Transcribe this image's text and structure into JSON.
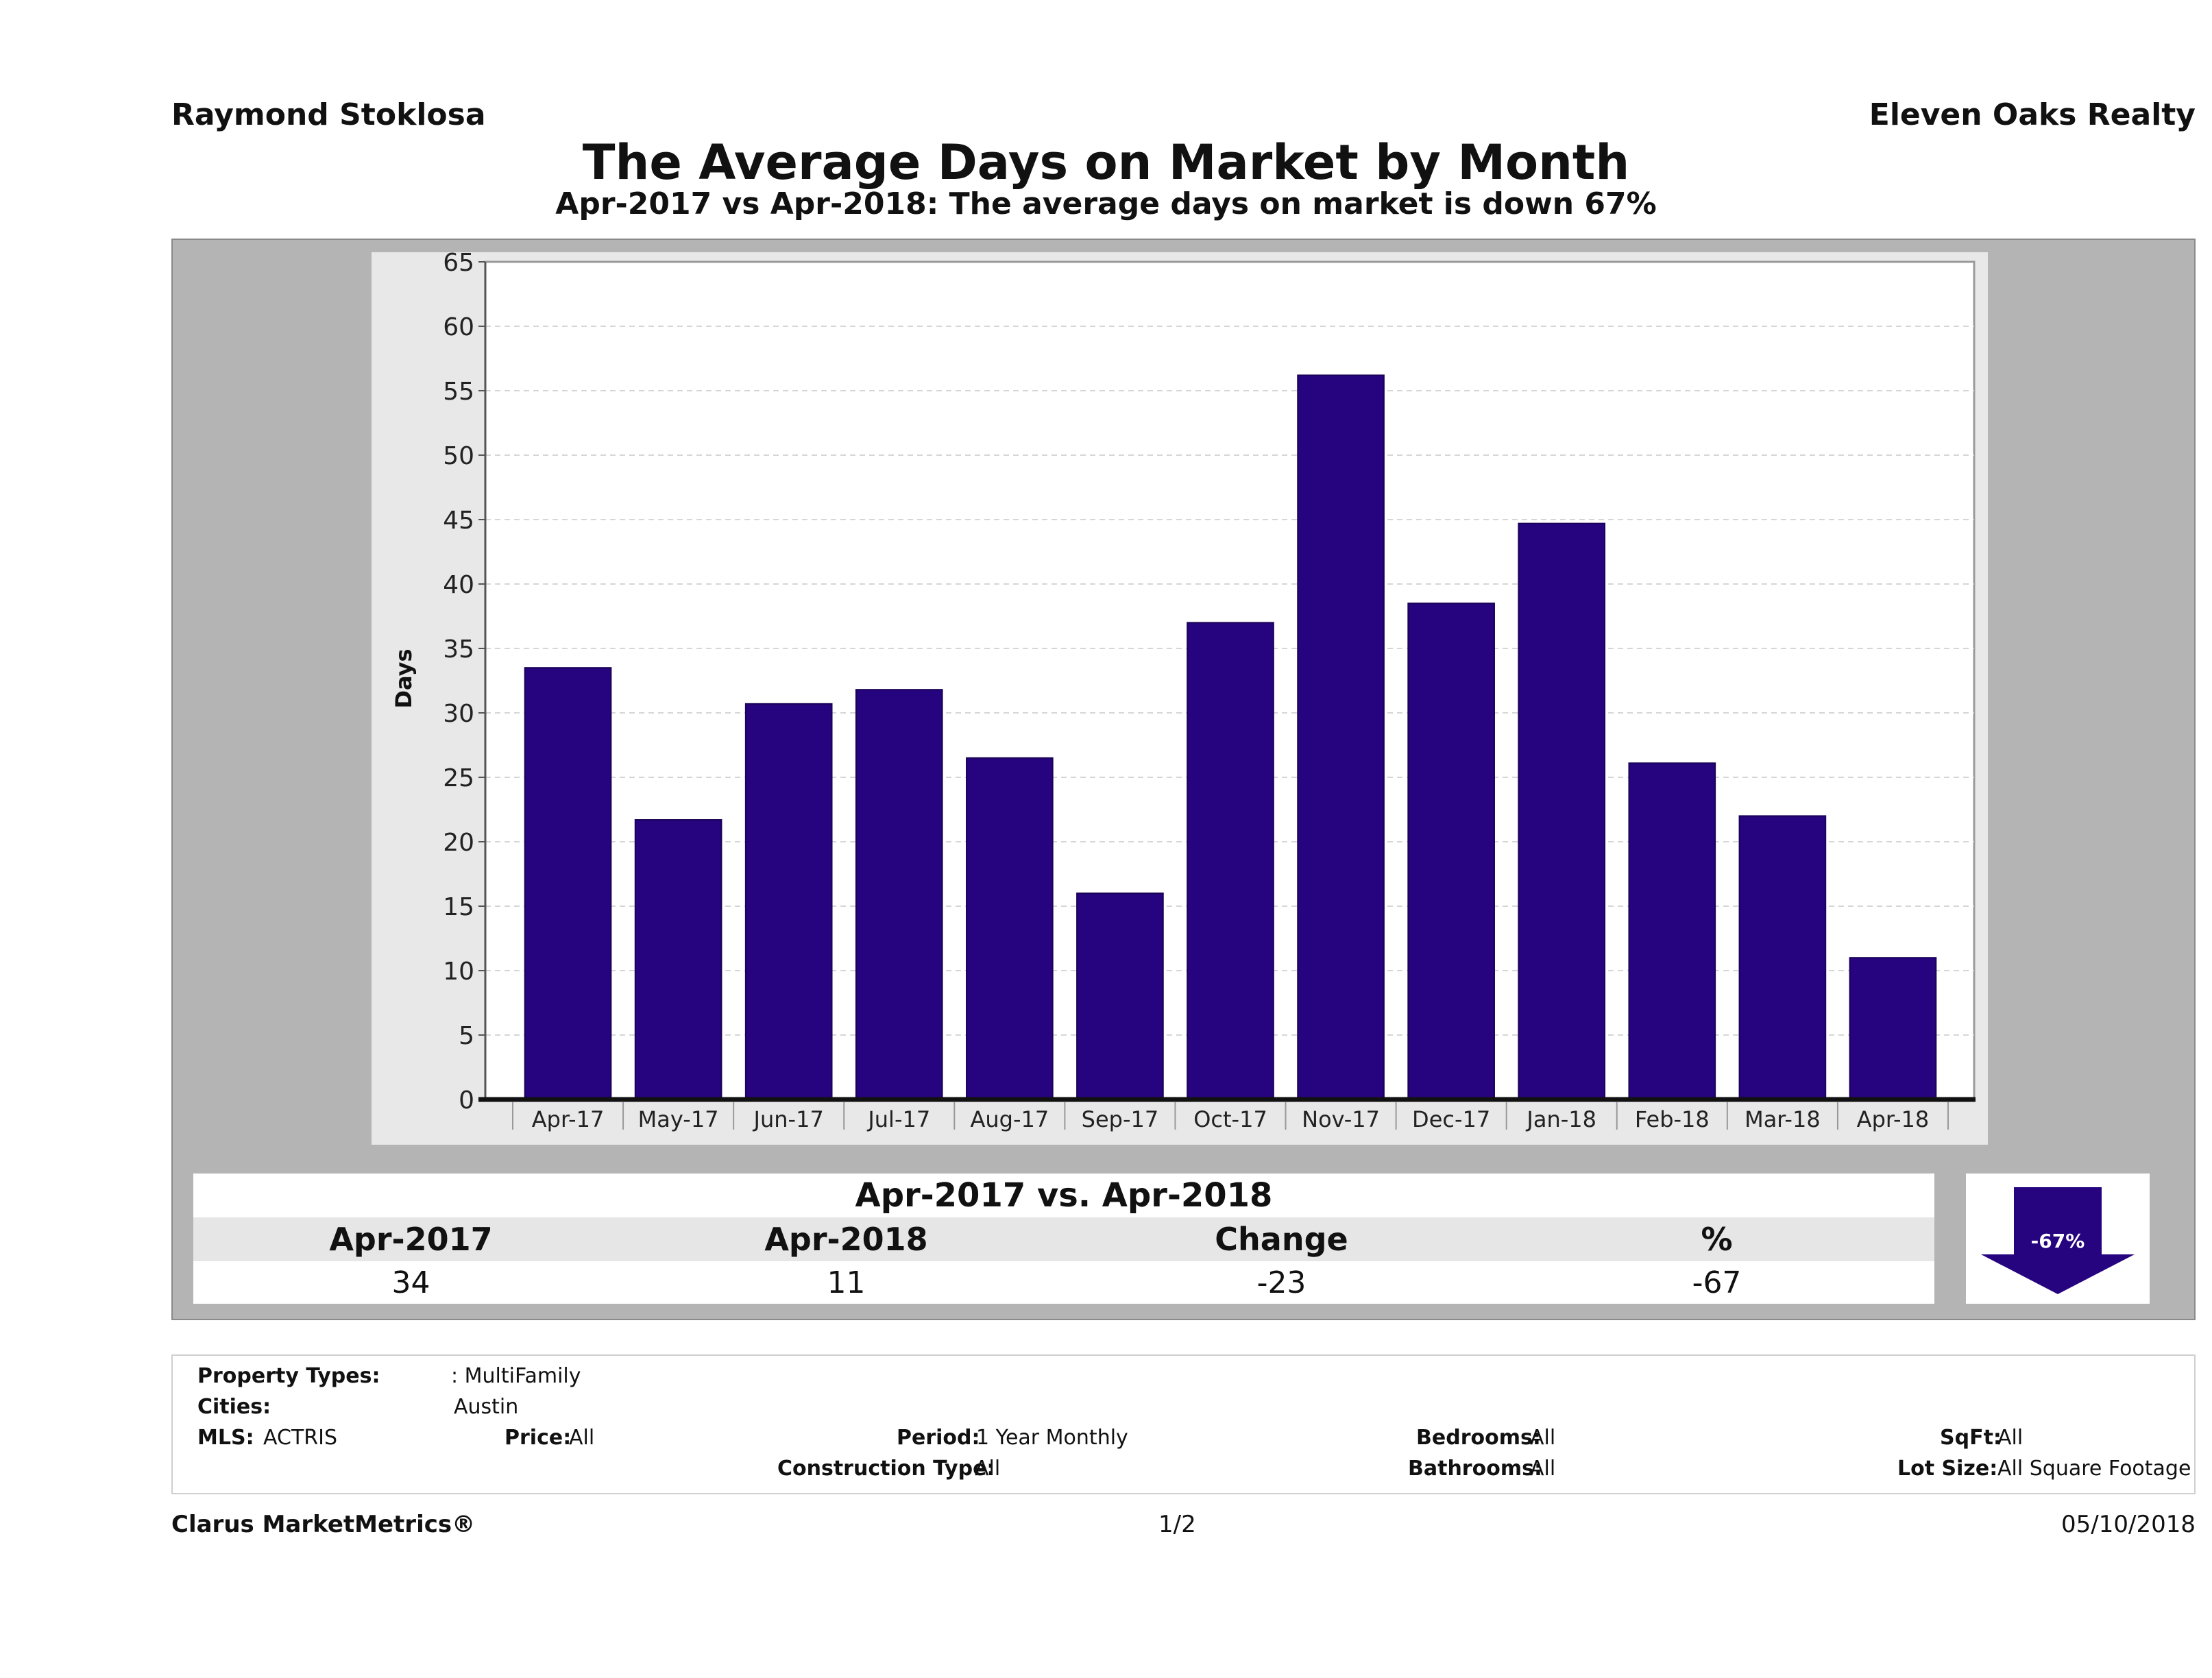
{
  "header": {
    "agent": "Raymond Stoklosa",
    "company": "Eleven Oaks Realty",
    "title": "The Average Days on Market by Month",
    "subtitle": "Apr-2017 vs Apr-2018: The average days on market is down 67%"
  },
  "chart_data": {
    "type": "bar",
    "categories": [
      "Apr-17",
      "May-17",
      "Jun-17",
      "Jul-17",
      "Aug-17",
      "Sep-17",
      "Oct-17",
      "Nov-17",
      "Dec-17",
      "Jan-18",
      "Feb-18",
      "Mar-18",
      "Apr-18"
    ],
    "values": [
      33.5,
      21.7,
      30.7,
      31.8,
      26.5,
      16.0,
      37.0,
      56.2,
      38.5,
      44.7,
      26.1,
      22.0,
      11.0
    ],
    "ylabel": "Days",
    "xlabel": "",
    "ylim": [
      0,
      65
    ],
    "yticks": [
      0,
      5,
      10,
      15,
      20,
      25,
      30,
      35,
      40,
      45,
      50,
      55,
      60,
      65
    ],
    "grid": true,
    "bar_color": "#26037f"
  },
  "summary": {
    "title": "Apr-2017 vs. Apr-2018",
    "headers": [
      "Apr-2017",
      "Apr-2018",
      "Change",
      "%"
    ],
    "values": [
      "34",
      "11",
      "-23",
      "-67"
    ],
    "badge": "-67%",
    "badge_color": "#26037f",
    "arrow_direction": "down"
  },
  "filters": {
    "property_types_label": "Property Types:",
    "property_types_value": ": MultiFamily",
    "cities_label": "Cities:",
    "cities_value": "Austin",
    "mls_label": "MLS:",
    "mls_value": "ACTRIS",
    "price_label": "Price:",
    "price_value": "All",
    "period_label": "Period:",
    "period_value": "1 Year Monthly",
    "construction_label": "Construction Type:",
    "construction_value": "All",
    "bedrooms_label": "Bedrooms:",
    "bedrooms_value": "All",
    "bathrooms_label": "Bathrooms:",
    "bathrooms_value": "All",
    "sqft_label": "SqFt:",
    "sqft_value": "All",
    "lot_size_label": "Lot Size:",
    "lot_size_value": "All Square Footage"
  },
  "footer": {
    "brand": "Clarus MarketMetrics®",
    "page": "1/2",
    "date": "05/10/2018"
  }
}
